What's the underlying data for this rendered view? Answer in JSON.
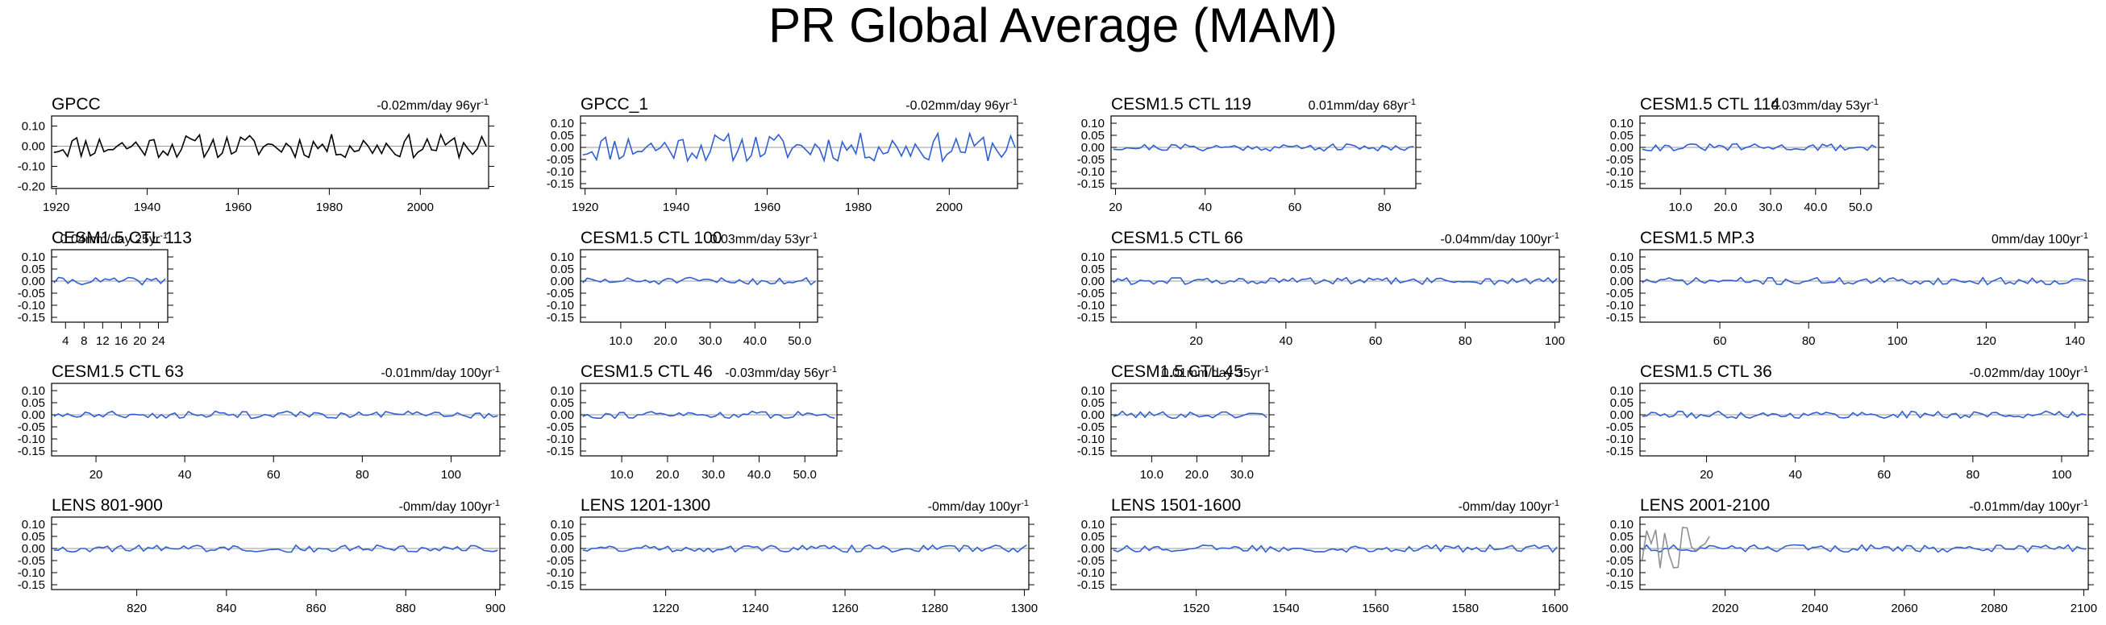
{
  "title": "PR Global Average (MAM)",
  "chart_data": [
    {
      "type": "line",
      "title": "GPCC",
      "trend": "-0.02mm/day 96yr",
      "trend_sup": "-1",
      "color": "#000000",
      "xlim": [
        1919,
        2015
      ],
      "xticks": [
        "1920",
        "1940",
        "1960",
        "1980",
        "2000"
      ],
      "yticks": [
        "0.10",
        "0.00",
        "-0.10",
        "-0.20"
      ],
      "ylim": [
        -0.21,
        0.15
      ],
      "n": 96,
      "amp": 0.06,
      "seed": 11,
      "x": []
    },
    {
      "type": "line",
      "title": "GPCC_1",
      "trend": "-0.02mm/day 96yr",
      "trend_sup": "-1",
      "color": "#3060d0",
      "xlim": [
        1919,
        2015
      ],
      "xticks": [
        "1920",
        "1940",
        "1960",
        "1980",
        "2000"
      ],
      "yticks": [
        "0.10",
        "0.05",
        "0.00",
        "-0.05",
        "-0.10",
        "-0.15"
      ],
      "ylim": [
        -0.17,
        0.13
      ],
      "n": 96,
      "amp": 0.06,
      "seed": 11
    },
    {
      "type": "line",
      "title": "CESM1.5 CTL 119",
      "trend": "0.01mm/day 68yr",
      "trend_sup": "-1",
      "color": "#3060d0",
      "xlim": [
        19,
        87
      ],
      "xticks": [
        "20",
        "40",
        "60",
        "80"
      ],
      "yticks": [
        "0.10",
        "0.05",
        "0.00",
        "-0.05",
        "-0.10",
        "-0.15"
      ],
      "ylim": [
        -0.17,
        0.13
      ],
      "n": 68,
      "amp": 0.015,
      "seed": 21
    },
    {
      "type": "line",
      "title": "CESM1.5 CTL 114",
      "trend": "0.03mm/day 53yr",
      "trend_sup": "-1",
      "color": "#3060d0",
      "xlim": [
        1,
        54
      ],
      "xticks": [
        "10.0",
        "20.0",
        "30.0",
        "40.0",
        "50.0"
      ],
      "yticks": [
        "0.10",
        "0.05",
        "0.00",
        "-0.05",
        "-0.10",
        "-0.15"
      ],
      "ylim": [
        -0.17,
        0.13
      ],
      "n": 53,
      "amp": 0.015,
      "seed": 31
    },
    {
      "type": "line",
      "title": "CESM1.5 CTL 113",
      "trend": "0.04mm/day 25yr",
      "trend_sup": "-1",
      "color": "#3060d0",
      "xlim": [
        1,
        26
      ],
      "xticks": [
        "4",
        "8",
        "12",
        "16",
        "20",
        "24"
      ],
      "yticks": [
        "0.10",
        "0.05",
        "0.00",
        "-0.05",
        "-0.10",
        "-0.15"
      ],
      "ylim": [
        -0.17,
        0.13
      ],
      "n": 25,
      "amp": 0.015,
      "seed": 41
    },
    {
      "type": "line",
      "title": "CESM1.5 CTL 100",
      "trend": "0.03mm/day 53yr",
      "trend_sup": "-1",
      "color": "#3060d0",
      "xlim": [
        1,
        54
      ],
      "xticks": [
        "10.0",
        "20.0",
        "30.0",
        "40.0",
        "50.0"
      ],
      "yticks": [
        "0.10",
        "0.05",
        "0.00",
        "-0.05",
        "-0.10",
        "-0.15"
      ],
      "ylim": [
        -0.17,
        0.13
      ],
      "n": 53,
      "amp": 0.015,
      "seed": 51
    },
    {
      "type": "line",
      "title": "CESM1.5 CTL 66",
      "trend": "-0.04mm/day 100yr",
      "trend_sup": "-1",
      "color": "#3060d0",
      "xlim": [
        1,
        101
      ],
      "xticks": [
        "20",
        "40",
        "60",
        "80",
        "100"
      ],
      "yticks": [
        "0.10",
        "0.05",
        "0.00",
        "-0.05",
        "-0.10",
        "-0.15"
      ],
      "ylim": [
        -0.17,
        0.13
      ],
      "n": 100,
      "amp": 0.015,
      "seed": 61
    },
    {
      "type": "line",
      "title": "CESM1.5 MP.3",
      "trend": "0mm/day 100yr",
      "trend_sup": "-1",
      "color": "#3060d0",
      "xlim": [
        42,
        143
      ],
      "xticks": [
        "60",
        "80",
        "100",
        "120",
        "140"
      ],
      "yticks": [
        "0.10",
        "0.05",
        "0.00",
        "-0.05",
        "-0.10",
        "-0.15"
      ],
      "ylim": [
        -0.17,
        0.13
      ],
      "n": 100,
      "amp": 0.015,
      "seed": 71
    },
    {
      "type": "line",
      "title": "CESM1.5 CTL 63",
      "trend": "-0.01mm/day 100yr",
      "trend_sup": "-1",
      "color": "#3060d0",
      "xlim": [
        10,
        111
      ],
      "xticks": [
        "20",
        "40",
        "60",
        "80",
        "100"
      ],
      "yticks": [
        "0.10",
        "0.05",
        "0.00",
        "-0.05",
        "-0.10",
        "-0.15"
      ],
      "ylim": [
        -0.17,
        0.13
      ],
      "n": 100,
      "amp": 0.015,
      "seed": 81
    },
    {
      "type": "line",
      "title": "CESM1.5 CTL 46",
      "trend": "-0.03mm/day 56yr",
      "trend_sup": "-1",
      "color": "#3060d0",
      "xlim": [
        1,
        57
      ],
      "xticks": [
        "10.0",
        "20.0",
        "30.0",
        "40.0",
        "50.0"
      ],
      "yticks": [
        "0.10",
        "0.05",
        "0.00",
        "-0.05",
        "-0.10",
        "-0.15"
      ],
      "ylim": [
        -0.17,
        0.13
      ],
      "n": 56,
      "amp": 0.015,
      "seed": 91
    },
    {
      "type": "line",
      "title": "CESM1.5 CTL 45",
      "trend": "0.01mm/day 35yr",
      "trend_sup": "-1",
      "color": "#3060d0",
      "xlim": [
        1,
        36
      ],
      "xticks": [
        "10.0",
        "20.0",
        "30.0"
      ],
      "yticks": [
        "0.10",
        "0.05",
        "0.00",
        "-0.05",
        "-0.10",
        "-0.15"
      ],
      "ylim": [
        -0.17,
        0.13
      ],
      "n": 35,
      "amp": 0.015,
      "seed": 101
    },
    {
      "type": "line",
      "title": "CESM1.5 CTL 36",
      "trend": "-0.02mm/day 100yr",
      "trend_sup": "-1",
      "color": "#3060d0",
      "xlim": [
        5,
        106
      ],
      "xticks": [
        "20",
        "40",
        "60",
        "80",
        "100"
      ],
      "yticks": [
        "0.10",
        "0.05",
        "0.00",
        "-0.05",
        "-0.10",
        "-0.15"
      ],
      "ylim": [
        -0.17,
        0.13
      ],
      "n": 100,
      "amp": 0.015,
      "seed": 111
    },
    {
      "type": "line",
      "title": "LENS 801-900",
      "trend": "-0mm/day 100yr",
      "trend_sup": "-1",
      "color": "#3060d0",
      "xlim": [
        801,
        901
      ],
      "xticks": [
        "820",
        "840",
        "860",
        "880",
        "900"
      ],
      "yticks": [
        "0.10",
        "0.05",
        "0.00",
        "-0.05",
        "-0.10",
        "-0.15"
      ],
      "ylim": [
        -0.17,
        0.13
      ],
      "n": 100,
      "amp": 0.015,
      "seed": 121
    },
    {
      "type": "line",
      "title": "LENS 1201-1300",
      "trend": "-0mm/day 100yr",
      "trend_sup": "-1",
      "color": "#3060d0",
      "xlim": [
        1201,
        1301
      ],
      "xticks": [
        "1220",
        "1240",
        "1260",
        "1280",
        "1300"
      ],
      "yticks": [
        "0.10",
        "0.05",
        "0.00",
        "-0.05",
        "-0.10",
        "-0.15"
      ],
      "ylim": [
        -0.17,
        0.13
      ],
      "n": 100,
      "amp": 0.015,
      "seed": 131
    },
    {
      "type": "line",
      "title": "LENS 1501-1600",
      "trend": "-0mm/day 100yr",
      "trend_sup": "-1",
      "color": "#3060d0",
      "xlim": [
        1501,
        1601
      ],
      "xticks": [
        "1520",
        "1540",
        "1560",
        "1580",
        "1600"
      ],
      "yticks": [
        "0.10",
        "0.05",
        "0.00",
        "-0.05",
        "-0.10",
        "-0.15"
      ],
      "ylim": [
        -0.17,
        0.13
      ],
      "n": 100,
      "amp": 0.015,
      "seed": 141
    },
    {
      "type": "line",
      "title": "LENS 2001-2100",
      "trend": "-0.01mm/day 100yr",
      "trend_sup": "-1",
      "color": "#3060d0",
      "xlim": [
        2001,
        2101
      ],
      "xticks": [
        "2020",
        "2040",
        "2060",
        "2080",
        "2100"
      ],
      "yticks": [
        "0.10",
        "0.05",
        "0.00",
        "-0.05",
        "-0.10",
        "-0.15"
      ],
      "ylim": [
        -0.17,
        0.13
      ],
      "n": 100,
      "amp": 0.015,
      "seed": 151,
      "overlay": {
        "color": "#909090",
        "n": 16,
        "amp": 0.09,
        "seed": 7
      }
    }
  ]
}
